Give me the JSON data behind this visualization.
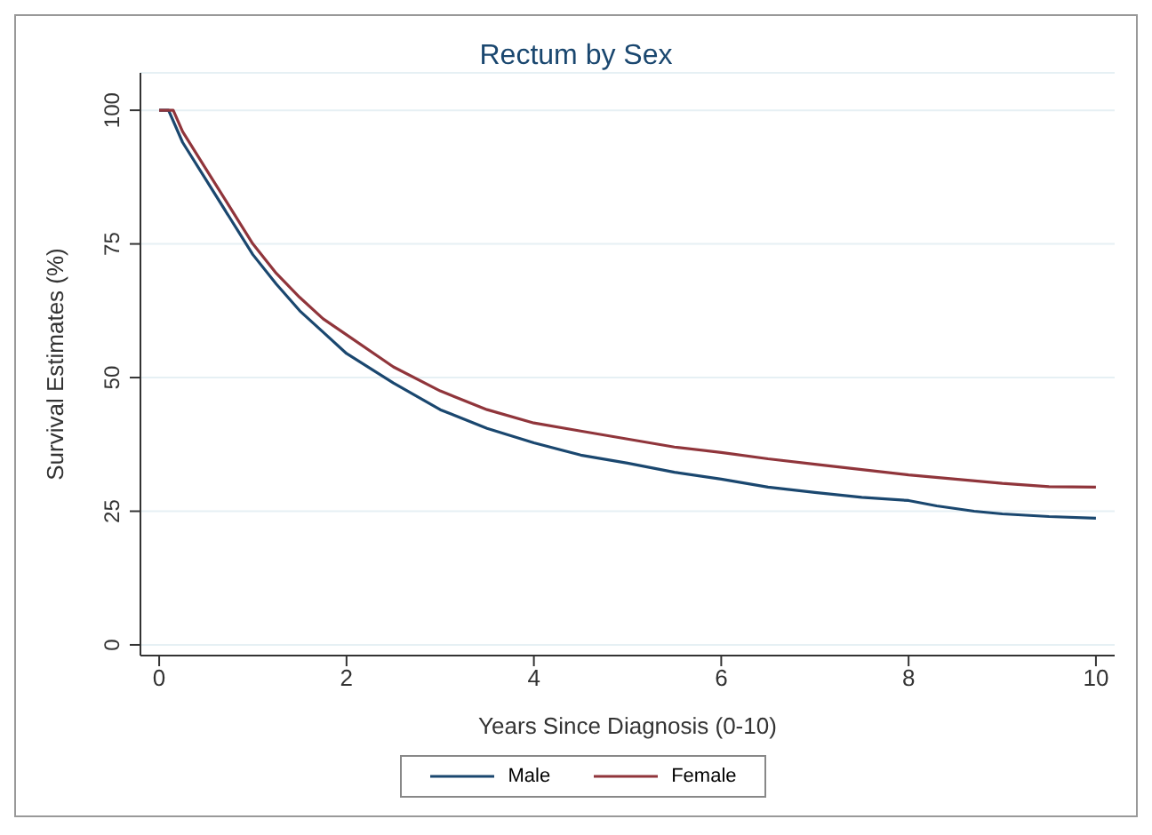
{
  "chart_data": {
    "type": "line",
    "title": "Rectum by Sex",
    "xlabel": "Years Since Diagnosis (0-10)",
    "ylabel": "Survival Estimates (%)",
    "xlim": [
      -0.2,
      10.2
    ],
    "xticks": [
      0,
      2,
      4,
      6,
      8,
      10
    ],
    "ylim": [
      -2,
      107
    ],
    "yticks": [
      0,
      25,
      50,
      75,
      100
    ],
    "grid": "y",
    "legend": "bottom",
    "marker": "none",
    "series": [
      {
        "name": "Male",
        "color": "#1a476f",
        "x": [
          0,
          0.1,
          0.25,
          0.5,
          0.75,
          1,
          1.25,
          1.5,
          1.75,
          2,
          2.5,
          3,
          3.5,
          4,
          4.5,
          5,
          5.5,
          6,
          6.5,
          7,
          7.5,
          8,
          8.3,
          8.7,
          9,
          9.5,
          10
        ],
        "values": [
          100,
          100,
          94,
          87,
          80,
          73,
          67.5,
          62.5,
          58.5,
          54.5,
          49,
          44,
          40.5,
          37.8,
          35.5,
          34,
          32.3,
          31,
          29.5,
          28.5,
          27.6,
          27,
          26,
          25,
          24.5,
          24,
          23.7
        ]
      },
      {
        "name": "Female",
        "color": "#90353b",
        "x": [
          0,
          0.15,
          0.25,
          0.5,
          0.75,
          1,
          1.25,
          1.5,
          1.75,
          2,
          2.5,
          3,
          3.5,
          4,
          4.5,
          5,
          5.5,
          6,
          6.5,
          7,
          7.5,
          8,
          8.5,
          9,
          9.5,
          10
        ],
        "values": [
          100,
          100,
          96,
          89,
          82,
          75,
          69.5,
          65,
          61,
          58,
          52,
          47.5,
          44,
          41.5,
          40,
          38.5,
          37,
          36,
          34.8,
          33.8,
          32.8,
          31.8,
          31,
          30.2,
          29.6,
          29.5
        ]
      }
    ]
  }
}
